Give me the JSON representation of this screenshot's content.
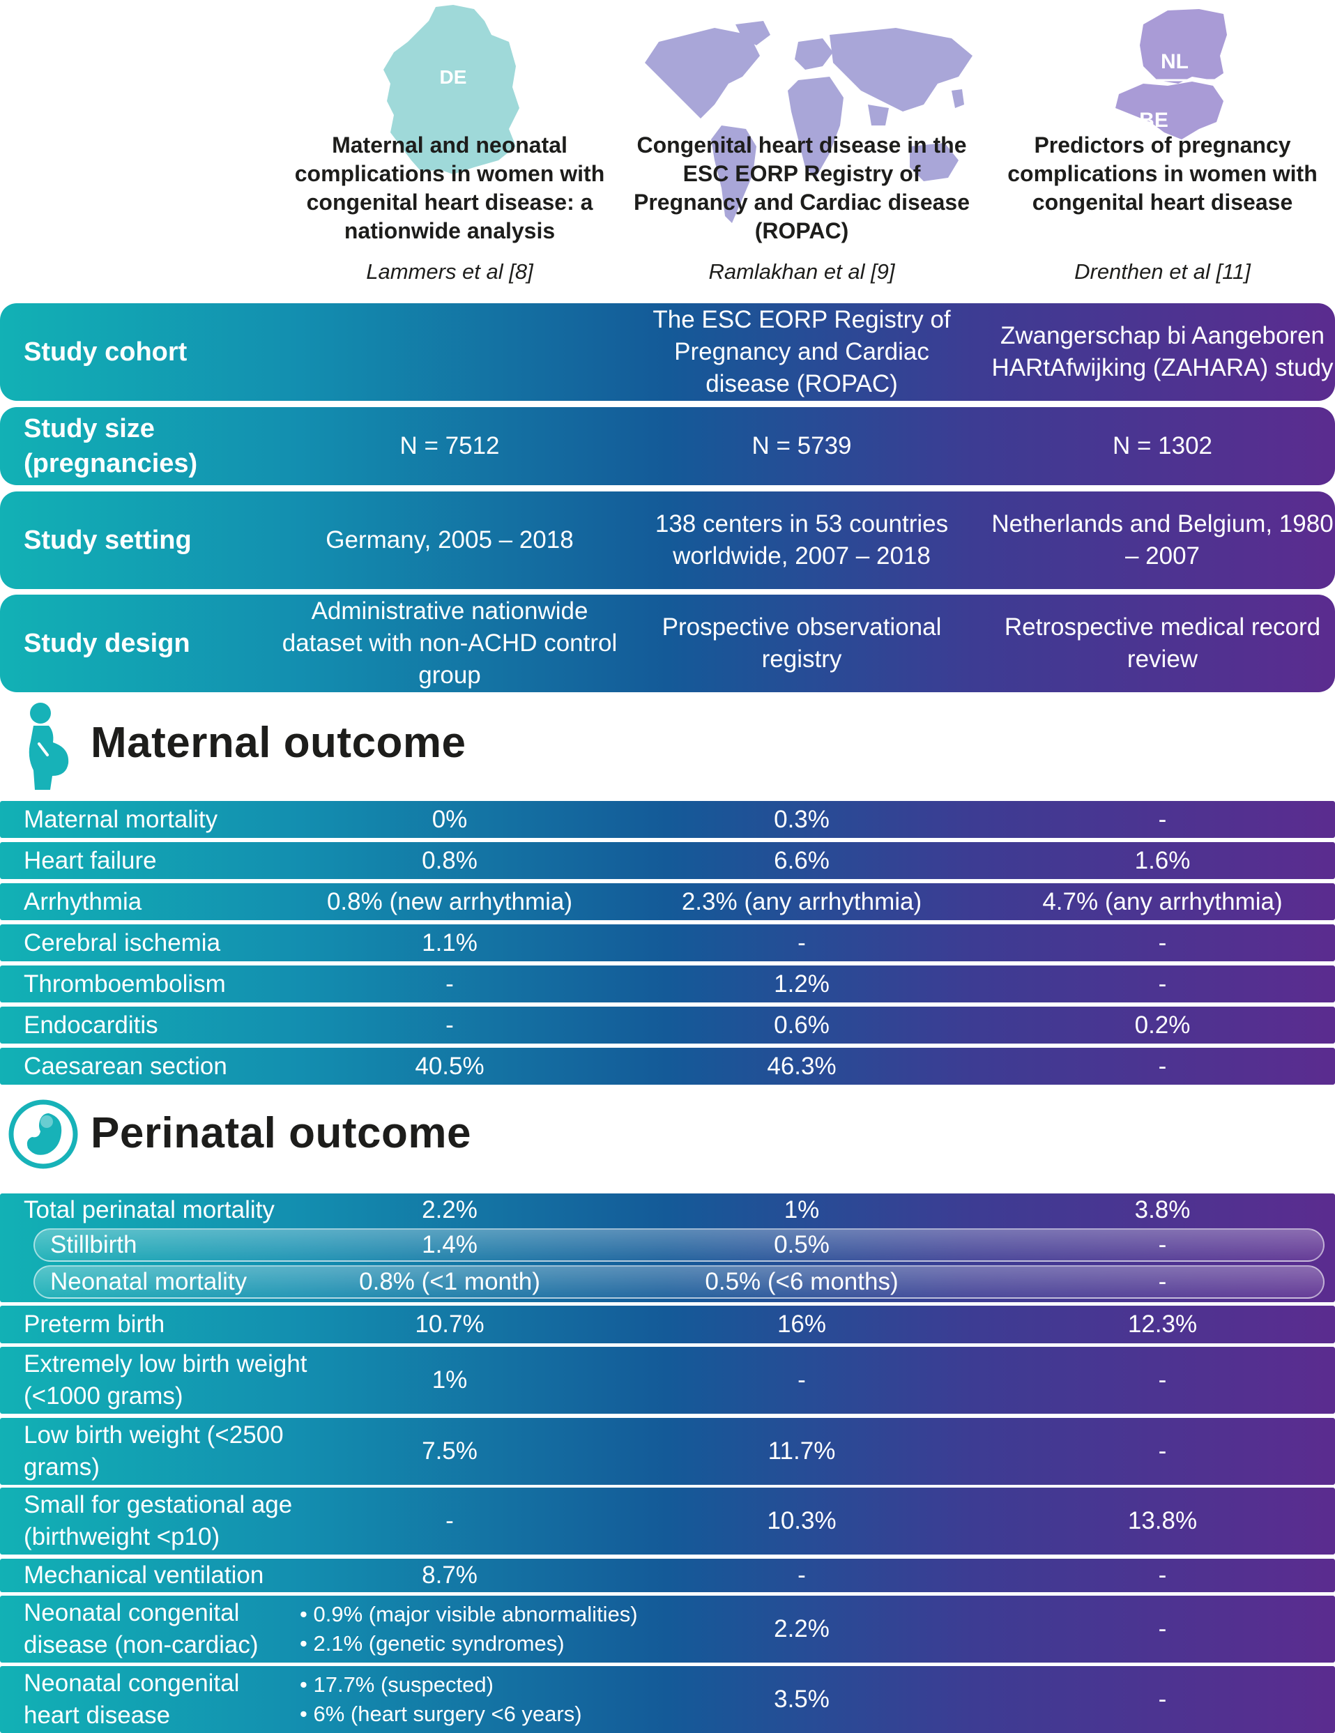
{
  "maps": [
    {
      "labels": [
        "DE"
      ],
      "color": "#9fd9d9"
    },
    {
      "labels": [],
      "color": "#a9a6d8"
    },
    {
      "labels": [
        "NL",
        "BE"
      ],
      "color": "#a99bd6"
    }
  ],
  "studies": [
    {
      "title": "Maternal and neonatal complications in women with congenital heart disease: a nationwide analysis",
      "author": "Lammers et al [8]"
    },
    {
      "title": "Congenital heart disease in the ESC EORP Registry of Pregnancy and Cardiac disease (ROPAC)",
      "author": "Ramlakhan et al [9]"
    },
    {
      "title": "Predictors of pregnancy complications in women with congenital heart disease",
      "author": "Drenthen et al [11]"
    }
  ],
  "study_rows": [
    {
      "label": "Study cohort",
      "values": [
        "",
        "The ESC EORP Registry of Pregnancy and Cardiac disease (ROPAC)",
        "Zwangerschap bi Aangeboren HARtAfwijking (ZAHARA) study"
      ]
    },
    {
      "label": "Study size (pregnancies)",
      "values": [
        "N = 7512",
        "N = 5739",
        "N = 1302"
      ]
    },
    {
      "label": "Study setting",
      "values": [
        "Germany, 2005 – 2018",
        "138 centers in 53 countries worldwide, 2007 – 2018",
        "Netherlands and Belgium, 1980 – 2007"
      ]
    },
    {
      "label": "Study design",
      "values": [
        "Administrative nationwide dataset with non-ACHD control group",
        "Prospective observational registry",
        "Retrospective medical record review"
      ]
    }
  ],
  "maternal": {
    "heading": "Maternal outcome",
    "icon": "pregnant-woman-icon",
    "rows": [
      {
        "label": "Maternal mortality",
        "values": [
          "0%",
          "0.3%",
          "-"
        ]
      },
      {
        "label": "Heart failure",
        "values": [
          "0.8%",
          "6.6%",
          "1.6%"
        ]
      },
      {
        "label": "Arrhythmia",
        "values": [
          "0.8% (new arrhythmia)",
          "2.3% (any arrhythmia)",
          "4.7% (any arrhythmia)"
        ]
      },
      {
        "label": "Cerebral ischemia",
        "values": [
          "1.1%",
          "-",
          "-"
        ]
      },
      {
        "label": "Thromboembolism",
        "values": [
          "-",
          "1.2%",
          "-"
        ]
      },
      {
        "label": "Endocarditis",
        "values": [
          "-",
          "0.6%",
          "0.2%"
        ]
      },
      {
        "label": "Caesarean section",
        "values": [
          "40.5%",
          "46.3%",
          "-"
        ]
      }
    ]
  },
  "perinatal": {
    "heading": "Perinatal outcome",
    "icon": "fetus-icon",
    "total": {
      "label": "Total perinatal mortality",
      "values": [
        "2.2%",
        "1%",
        "3.8%"
      ]
    },
    "sub": [
      {
        "label": "Stillbirth",
        "values": [
          "1.4%",
          "0.5%",
          "-"
        ]
      },
      {
        "label": "Neonatal mortality",
        "values": [
          "0.8% (<1 month)",
          "0.5% (<6 months)",
          "-"
        ]
      }
    ],
    "rows": [
      {
        "label": "Preterm birth",
        "values": [
          "10.7%",
          "16%",
          "12.3%"
        ]
      },
      {
        "label": "Extremely low birth weight (<1000 grams)",
        "values": [
          "1%",
          "-",
          "-"
        ]
      },
      {
        "label": "Low birth weight (<2500 grams)",
        "values": [
          "7.5%",
          "11.7%",
          "-"
        ]
      },
      {
        "label": "Small for gestational age (birthweight <p10)",
        "values": [
          "-",
          "10.3%",
          "13.8%"
        ]
      },
      {
        "label": "Mechanical ventilation",
        "values": [
          "8.7%",
          "-",
          "-"
        ]
      }
    ],
    "bullet_rows": [
      {
        "label": "Neonatal congenital disease (non-cardiac)",
        "bullets": [
          "0.9% (major visible abnormalities)",
          "2.1% (genetic syndromes)"
        ],
        "values": [
          "2.2%",
          "-"
        ]
      },
      {
        "label": "Neonatal congenital heart disease",
        "bullets": [
          "17.7% (suspected)",
          "6% (heart surgery <6 years)"
        ],
        "values": [
          "3.5%",
          "-"
        ]
      }
    ]
  }
}
